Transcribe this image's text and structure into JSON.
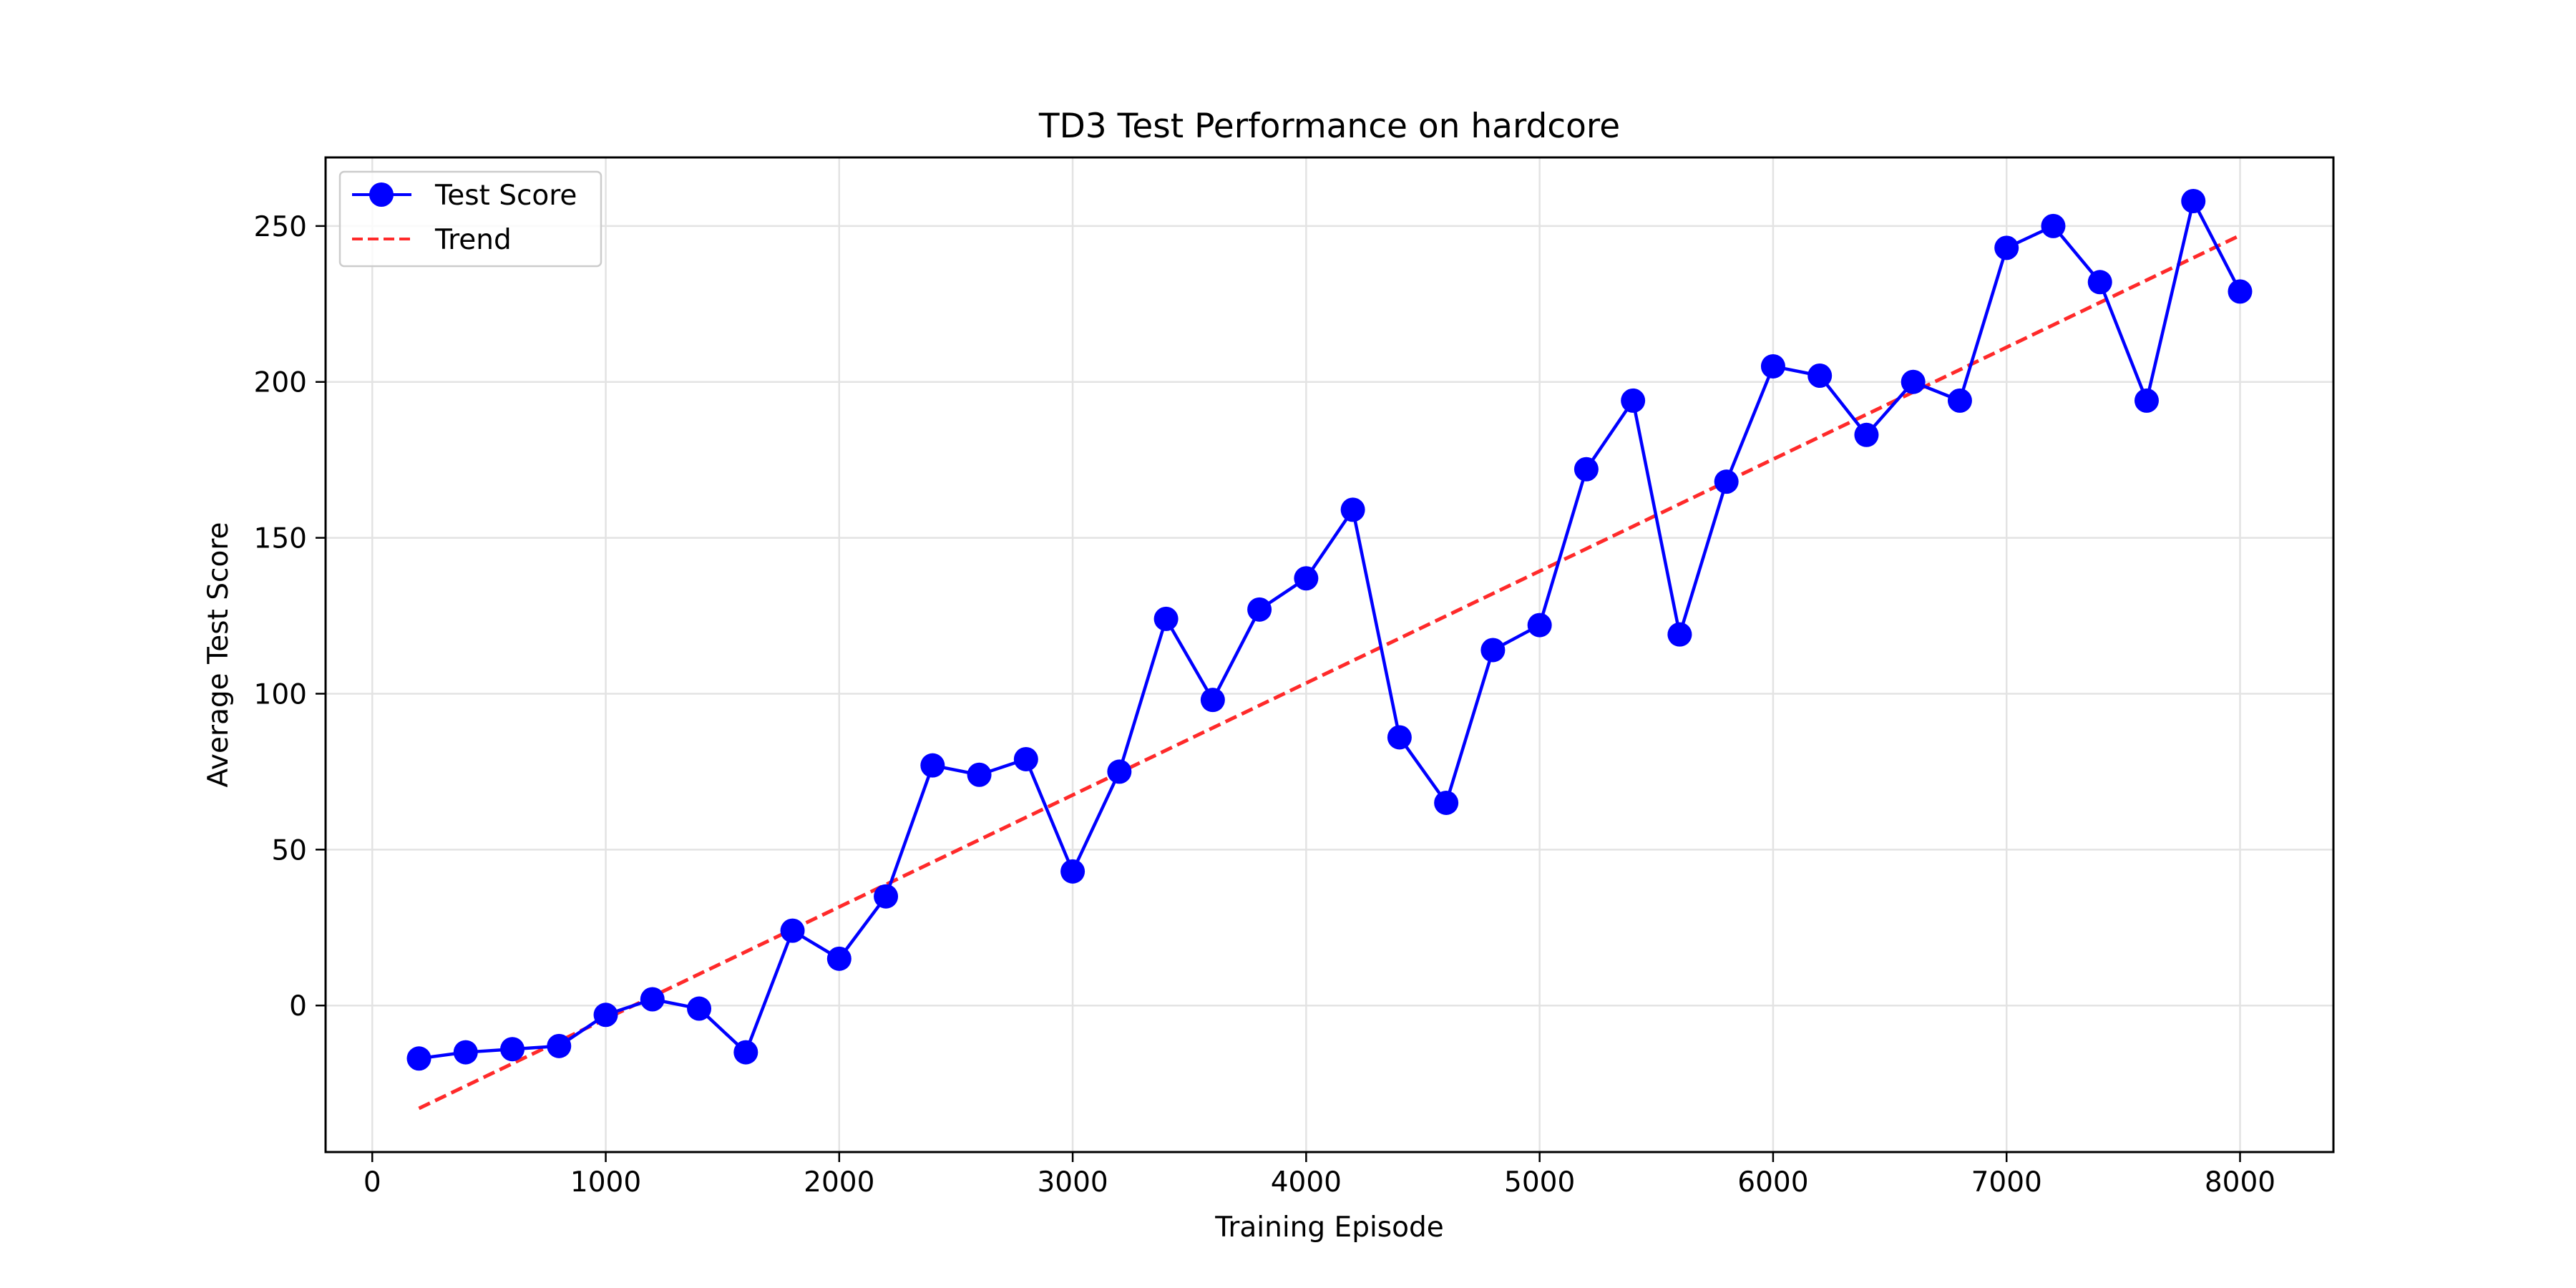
{
  "chart_data": {
    "type": "line",
    "title": "TD3 Test Performance on hardcore",
    "xlabel": "Training Episode",
    "ylabel": "Average Test Score",
    "xlim": [
      -200,
      8400
    ],
    "ylim": [
      -47,
      272
    ],
    "xticks": [
      0,
      1000,
      2000,
      3000,
      4000,
      5000,
      6000,
      7000,
      8000
    ],
    "yticks": [
      0,
      50,
      100,
      150,
      200,
      250
    ],
    "grid": true,
    "legend_position": "top-left",
    "series": [
      {
        "name": "Test Score",
        "style": "solid line with circle markers",
        "color": "#0000ff",
        "x": [
          200,
          400,
          600,
          800,
          1000,
          1200,
          1400,
          1600,
          1800,
          2000,
          2200,
          2400,
          2600,
          2800,
          3000,
          3200,
          3400,
          3600,
          3800,
          4000,
          4200,
          4400,
          4600,
          4800,
          5000,
          5200,
          5400,
          5600,
          5800,
          6000,
          6200,
          6400,
          6600,
          6800,
          7000,
          7200,
          7400,
          7600,
          7800,
          8000
        ],
        "y": [
          -17,
          -15,
          -14,
          -13,
          -3,
          2,
          -1,
          -15,
          24,
          15,
          35,
          77,
          74,
          79,
          43,
          75,
          124,
          98,
          127,
          137,
          159,
          86,
          65,
          114,
          122,
          172,
          194,
          119,
          168,
          205,
          202,
          183,
          200,
          194,
          243,
          250,
          232,
          194,
          258,
          229
        ]
      },
      {
        "name": "Trend",
        "style": "dashed line",
        "color": "#ff2a2a",
        "x": [
          200,
          8000
        ],
        "y": [
          -33,
          247
        ]
      }
    ]
  }
}
